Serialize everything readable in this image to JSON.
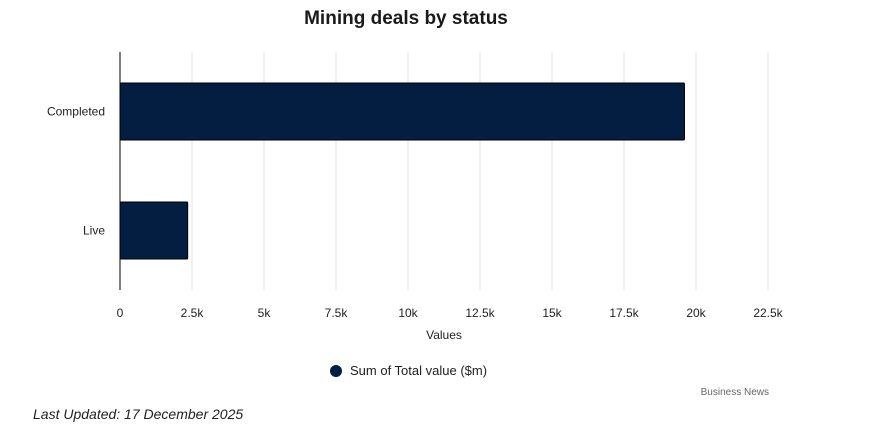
{
  "chart_data": {
    "type": "bar",
    "orientation": "horizontal",
    "title": "Mining deals by status",
    "categories": [
      "Completed",
      "Live"
    ],
    "series": [
      {
        "name": "Sum of Total value ($m)",
        "values": [
          19600,
          2350
        ]
      }
    ],
    "xlabel": "Values",
    "ylabel": "",
    "xlim": [
      0,
      22500
    ],
    "xticks": [
      0,
      2500,
      5000,
      7500,
      10000,
      12500,
      15000,
      17500,
      20000,
      22500
    ],
    "xtick_labels": [
      "0",
      "2.5k",
      "5k",
      "7.5k",
      "10k",
      "12.5k",
      "15k",
      "17.5k",
      "20k",
      "22.5k"
    ],
    "grid": true,
    "legend_position": "bottom",
    "colors": {
      "bar": "#041e42",
      "grid": "#e0e0e0",
      "axis": "#000000"
    }
  },
  "credit": "Business News",
  "footer": "Last Updated: 17 December 2025"
}
